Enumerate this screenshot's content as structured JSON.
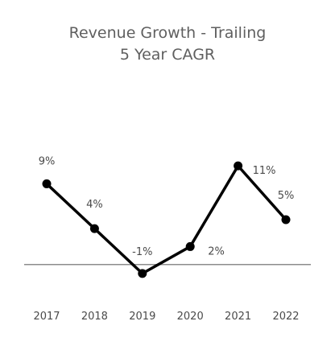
{
  "chart_data": {
    "type": "line",
    "title_lines": [
      "Revenue Growth - Trailing",
      "5 Year CAGR"
    ],
    "xlabel": "",
    "ylabel": "",
    "categories": [
      "2017",
      "2018",
      "2019",
      "2020",
      "2021",
      "2022"
    ],
    "series": [
      {
        "values": [
          9,
          4,
          -1,
          2,
          11,
          5
        ],
        "data_labels": [
          "9%",
          "4%",
          "-1%",
          "2%",
          "11%",
          "5%"
        ],
        "color": "#000000"
      }
    ],
    "ylim": [
      -2,
      12
    ],
    "zero_line": true,
    "zero_line_color": "#8c8c8c",
    "grid": false,
    "legend": "none"
  }
}
